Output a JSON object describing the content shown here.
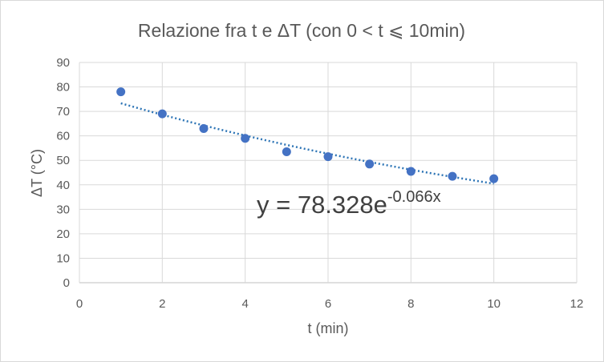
{
  "chart_data": {
    "type": "scatter",
    "title": "Relazione fra t e ΔT (con 0 < t ⩽ 10min)",
    "xlabel": "t (min)",
    "ylabel": "ΔT  (°C)",
    "xlim": [
      0,
      12
    ],
    "ylim": [
      0,
      90
    ],
    "xticks": [
      0,
      2,
      4,
      6,
      8,
      10,
      12
    ],
    "yticks": [
      0,
      10,
      20,
      30,
      40,
      50,
      60,
      70,
      80,
      90
    ],
    "grid": true,
    "legend": "none",
    "series": [
      {
        "x": [
          1,
          2,
          3,
          4,
          5,
          6,
          7,
          8,
          9,
          10
        ],
        "y": [
          78,
          69,
          63,
          59,
          53.5,
          51.5,
          48.5,
          45.5,
          43.5,
          42.5
        ],
        "color": "#4472c4"
      }
    ],
    "trendline": {
      "type": "exponential",
      "a": 78.328,
      "b": -0.066,
      "x_range": [
        1,
        10
      ],
      "color": "#2e75b6",
      "equation_base": "y = 78.328e",
      "equation_exponent": "-0.066x"
    }
  }
}
